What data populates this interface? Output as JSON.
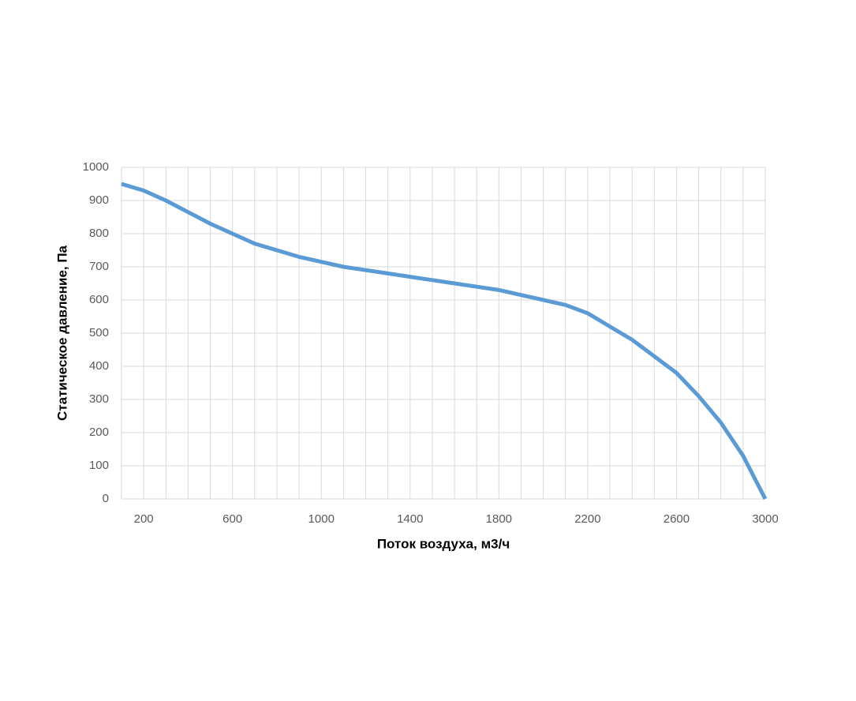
{
  "chart_data": {
    "type": "line",
    "xlabel": "Поток воздуха, м3/ч",
    "ylabel": "Статическое давление, Па",
    "x": [
      100,
      200,
      300,
      400,
      500,
      600,
      700,
      800,
      900,
      1000,
      1100,
      1200,
      1300,
      1400,
      1500,
      1600,
      1700,
      1800,
      1900,
      2000,
      2100,
      2200,
      2300,
      2400,
      2500,
      2600,
      2700,
      2800,
      2900,
      3000
    ],
    "series": [
      {
        "color": "#5b9bd5",
        "values": [
          950,
          930,
          900,
          865,
          830,
          800,
          770,
          750,
          730,
          715,
          700,
          690,
          680,
          670,
          660,
          650,
          640,
          630,
          615,
          600,
          585,
          560,
          520,
          480,
          430,
          380,
          310,
          230,
          130,
          0
        ]
      }
    ],
    "xlim": [
      100,
      3000
    ],
    "xticks": [
      200,
      600,
      1000,
      1400,
      1800,
      2200,
      2600,
      3000
    ],
    "x_minor_ticks": [
      100,
      200,
      300,
      400,
      500,
      600,
      700,
      800,
      900,
      1000,
      1100,
      1200,
      1300,
      1400,
      1500,
      1600,
      1700,
      1800,
      1900,
      2000,
      2100,
      2200,
      2300,
      2400,
      2500,
      2600,
      2700,
      2800,
      2900,
      3000
    ],
    "ylim": [
      0,
      1000
    ],
    "yticks": [
      0,
      100,
      200,
      300,
      400,
      500,
      600,
      700,
      800,
      900,
      1000
    ],
    "grid": true
  }
}
